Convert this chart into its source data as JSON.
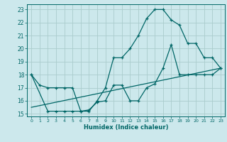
{
  "title": "",
  "xlabel": "Humidex (Indice chaleur)",
  "bg_color": "#cce8ec",
  "grid_color": "#aacccc",
  "line_color": "#006666",
  "xlim": [
    -0.5,
    23.5
  ],
  "ylim": [
    14.8,
    23.4
  ],
  "xticks": [
    0,
    1,
    2,
    3,
    4,
    5,
    6,
    7,
    8,
    9,
    10,
    11,
    12,
    13,
    14,
    15,
    16,
    17,
    18,
    19,
    20,
    21,
    22,
    23
  ],
  "yticks": [
    15,
    16,
    17,
    18,
    19,
    20,
    21,
    22,
    23
  ],
  "line1_x": [
    0,
    1,
    2,
    3,
    4,
    5,
    6,
    7,
    8,
    9,
    10,
    11,
    12,
    13,
    14,
    15,
    16,
    17,
    18,
    19,
    20,
    21,
    22,
    23
  ],
  "line1_y": [
    18,
    17.2,
    17,
    17,
    17,
    17,
    15.2,
    15.2,
    16.0,
    17.0,
    19.3,
    19.3,
    20.0,
    21.0,
    22.3,
    23.0,
    23.0,
    22.2,
    21.8,
    20.4,
    20.4,
    19.3,
    19.3,
    18.5
  ],
  "line2_x": [
    0,
    2,
    3,
    4,
    5,
    6,
    7,
    8,
    9,
    10,
    11,
    12,
    13,
    14,
    15,
    16,
    17,
    18,
    19,
    20,
    21,
    22,
    23
  ],
  "line2_y": [
    18,
    15.2,
    15.2,
    15.2,
    15.2,
    15.2,
    15.3,
    15.9,
    16.0,
    17.2,
    17.2,
    16.0,
    16.0,
    17.0,
    17.3,
    18.5,
    20.3,
    18.0,
    18.0,
    18.0,
    18.0,
    18.0,
    18.5
  ],
  "line3_x": [
    0,
    23
  ],
  "line3_y": [
    15.5,
    18.5
  ]
}
